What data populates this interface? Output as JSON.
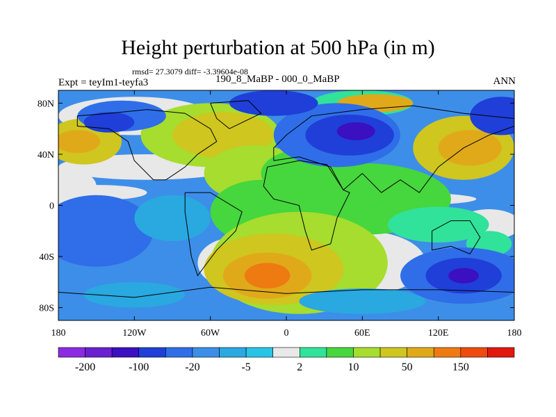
{
  "chart_data": {
    "type": "heatmap",
    "title": "Height perturbation at 500 hPa (in m)",
    "subtitle_stats": "rmsd= 27.3079 diff= -3.39604e-08",
    "experiment_label": "Expt = teyIm1-teyfa3",
    "case_label": "190_8_MaBP - 000_0_MaBP",
    "season": "ANN",
    "x_ticks": [
      "180",
      "120W",
      "60W",
      "0",
      "60E",
      "120E",
      "180"
    ],
    "y_ticks": [
      "80N",
      "40N",
      "0",
      "40S",
      "80S"
    ],
    "xlim": [
      -180,
      180
    ],
    "ylim": [
      -90,
      90
    ],
    "colorbar": {
      "levels_labels": [
        "-200",
        "-100",
        "-20",
        "-5",
        "2",
        "10",
        "50",
        "150"
      ],
      "colors": [
        "#8a2be2",
        "#6a1fd0",
        "#3a10c0",
        "#1f3fd8",
        "#2f6ee8",
        "#3d8ee8",
        "#2aa8e0",
        "#29c3e6",
        "#e8e8e8",
        "#31e29a",
        "#46d63d",
        "#a6dd2e",
        "#cfc61f",
        "#e0a91a",
        "#ee7a12",
        "#ee4a0e",
        "#e0180e"
      ]
    },
    "features": [
      {
        "name": "blue low",
        "lon": -140,
        "lat": 65,
        "value": -60
      },
      {
        "name": "orange high",
        "lon": -160,
        "lat": 50,
        "value": 40
      },
      {
        "name": "yellow ridge",
        "lon": -20,
        "lat": 55,
        "value": 30
      },
      {
        "name": "deep low",
        "lon": 50,
        "lat": 55,
        "value": -100
      },
      {
        "name": "orange high",
        "lon": 70,
        "lat": 80,
        "value": 40
      },
      {
        "name": "yellow high",
        "lon": 140,
        "lat": 45,
        "value": 30
      },
      {
        "name": "blue low",
        "lon": 165,
        "lat": 75,
        "value": -40
      },
      {
        "name": "deep high",
        "lon": -20,
        "lat": -55,
        "value": 110
      },
      {
        "name": "deep low",
        "lon": 140,
        "lat": -55,
        "value": -100
      },
      {
        "name": "low",
        "lon": -140,
        "lat": -20,
        "value": -30
      }
    ]
  },
  "colors": {
    "coastline": "#000000",
    "missing": "#e8e8e8"
  }
}
